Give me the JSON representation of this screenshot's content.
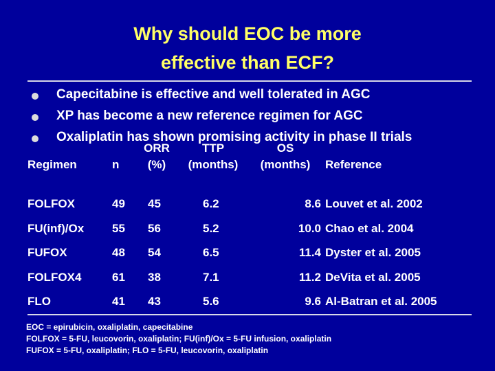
{
  "title": [
    "Why should EOC be more",
    "effective than ECF?"
  ],
  "bullets": [
    "Capecitabine is effective and well tolerated in AGC",
    "XP has become a new reference regimen for AGC",
    "Oxaliplatin has shown promising activity in phase II trials"
  ],
  "table": {
    "header": [
      [
        "Regimen"
      ],
      [
        "n"
      ],
      [
        "ORR",
        "(%)"
      ],
      [
        "TTP",
        "(months)"
      ],
      [
        "OS",
        "(months)"
      ],
      [
        "Reference"
      ]
    ],
    "rows": [
      [
        "FOLFOX",
        "49",
        "45",
        "6.2",
        "8.6",
        "Louvet et al. 2002"
      ],
      [
        "FU(inf)/Ox",
        "55",
        "56",
        "5.2",
        "10.0",
        "Chao et al. 2004"
      ],
      [
        "FUFOX",
        "48",
        "54",
        "6.5",
        "11.4",
        "Dyster et al. 2005"
      ],
      [
        "FOLFOX4",
        "61",
        "38",
        "7.1",
        "11.2",
        "DeVita et al. 2005"
      ],
      [
        "FLO",
        "41",
        "43",
        "5.6",
        "9.6",
        "Al-Batran et al. 2005"
      ]
    ]
  },
  "footnotes": [
    "EOC = epirubicin, oxaliplatin, capecitabine",
    "FOLFOX = 5-FU, leucovorin, oxaliplatin; FU(inf)/Ox = 5-FU infusion, oxaliplatin",
    "FUFOX = 5-FU, oxaliplatin; FLO = 5-FU, leucovorin, oxaliplatin"
  ]
}
